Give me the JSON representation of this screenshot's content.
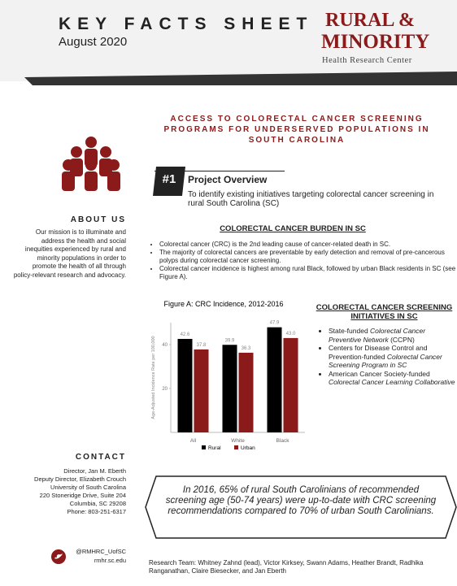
{
  "header": {
    "title": "KEY FACTS SHEET",
    "date": "August 2020",
    "logo": {
      "line1": "RURAL &",
      "line2": "MINORITY",
      "line3": "Health Research Center"
    }
  },
  "headline": "ACCESS TO COLORECTAL CANCER SCREENING PROGRAMS FOR UNDERSERVED POPULATIONS IN SOUTH CAROLINA",
  "sidebar": {
    "about_title": "ABOUT US",
    "about_text": "Our mission is to illuminate and address the health and social inequities experienced by rural and minority populations in order to promote the health of all through policy-relevant research and advocacy.",
    "contact_title": "CONTACT",
    "contact_lines": [
      "Director, Jan M. Eberth",
      "Deputy Director, Elizabeth Crouch",
      "University of South Carolina",
      "220 Stoneridge Drive, Suite 204",
      "Columbia, SC 29208",
      "Phone: 803-251-6317"
    ],
    "twitter": "@RMHRC_UofSC",
    "website": "rmhr.sc.edu"
  },
  "overview": {
    "badge": "#1",
    "title": "Project Overview",
    "text": "To identify existing initiatives targeting colorectal cancer screening in rural South Carolina (SC)"
  },
  "burden": {
    "title": "COLORECTAL CANCER BURDEN IN SC",
    "bullets": [
      "Colorectal cancer (CRC) is the 2nd leading cause of cancer-related death  in SC.",
      "The majority of colorectal cancers are preventable by early detection and removal of pre-cancerous polyps during colorectal cancer screening.",
      "Colorectal cancer incidence is highest among rural Black, followed by urban Black residents in SC (see Figure A)."
    ]
  },
  "figure": {
    "type": "bar",
    "title": "Figure A: CRC Incidence, 2012-2016",
    "y_label": "Age-Adjusted Incidence Rate per 100,000",
    "categories": [
      "All",
      "White",
      "Black"
    ],
    "series": [
      {
        "name": "Rural",
        "color": "#000000",
        "values": [
          42.6,
          39.9,
          47.9
        ]
      },
      {
        "name": "Urban",
        "color": "#8b1a1a",
        "values": [
          37.8,
          36.3,
          43
        ],
        "value_labels": [
          "37.8",
          "36.3",
          "43.0"
        ]
      }
    ],
    "ylim": [
      0,
      50
    ],
    "yticks": [
      20,
      40
    ]
  },
  "initiatives": {
    "title": "COLORECTAL CANCER SCREENING INITIATIVES IN SC",
    "bullets": [
      [
        "State-funded ",
        "Colorectal Cancer Preventive Network",
        " (CCPN)"
      ],
      [
        "Centers for Disease Control and Prevention-funded ",
        "Colorectal Cancer Screening Program in SC"
      ],
      [
        "American Cancer Society-funded ",
        "Colorectal Cancer Learning Collaborative"
      ]
    ]
  },
  "callout": "In 2016, 65% of rural South Carolinians of recommended screening age (50-74 years) were up-to-date with CRC screening recommendations compared to 70% of urban South Carolinians.",
  "research_team": "Research Team:  Whitney Zahnd (lead), Victor Kirksey, Swann Adams, Heather Brandt, Radhika Ranganathan, Claire Biesecker, and Jan Eberth"
}
